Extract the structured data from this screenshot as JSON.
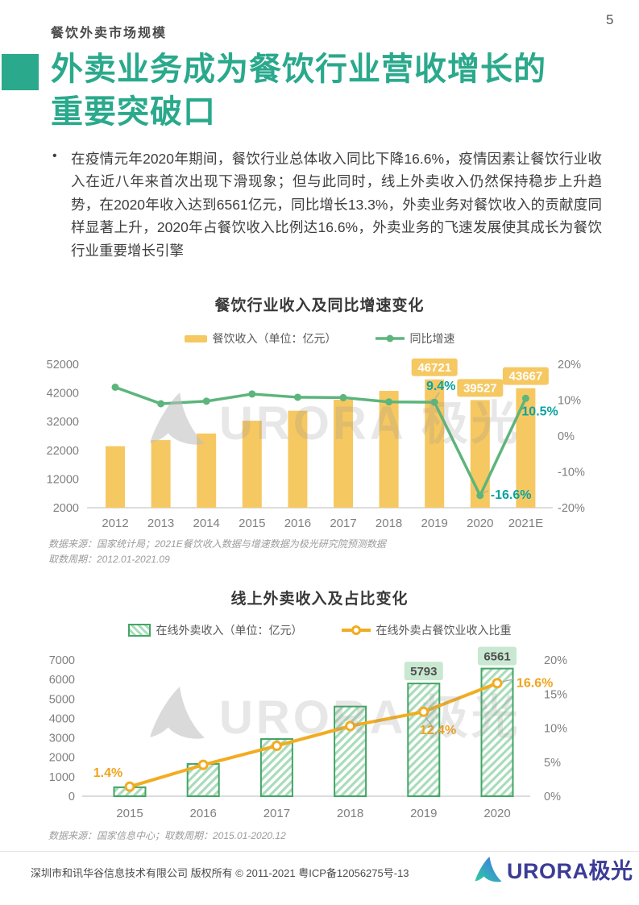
{
  "page": {
    "number": "5"
  },
  "header": {
    "section_title": "餐饮外卖市场规模"
  },
  "title": {
    "line1": "外卖业务成为餐饮行业营收增长的",
    "line2": "重要突破口"
  },
  "bullet": {
    "marker": "•",
    "text": "在疫情元年2020年期间，餐饮行业总体收入同比下降16.6%，疫情因素让餐饮行业收入在近八年来首次出现下滑现象；但与此同时，线上外卖收入仍然保持稳步上升趋势，在2020年收入达到6561亿元，同比增长13.3%，外卖业务对餐饮收入的贡献度同样显著上升，2020年占餐饮收入比例达16.6%，外卖业务的飞速发展使其成长为餐饮行业重要增长引擎"
  },
  "colors": {
    "accent_teal": "#2aa98c",
    "bar_yellow": "#F6C862",
    "line_green": "#5CB57C",
    "teal_label": "#0BA3A1",
    "hatch_border_green": "#43A566",
    "hatch_stripe_green": "#A9DCBA",
    "green_box_bg": "#C9E8D1",
    "line_orange": "#F2AC21",
    "orange_label": "#F0A41C",
    "logo_indigo": "#3c3c96"
  },
  "chart_data": [
    {
      "type": "bar+line",
      "title": "餐饮行业收入及同比增速变化",
      "legend": [
        {
          "label": "餐饮收入（单位：亿元）",
          "swatch": "bar"
        },
        {
          "label": "同比增速",
          "swatch": "line"
        }
      ],
      "categories": [
        "2012",
        "2013",
        "2014",
        "2015",
        "2016",
        "2017",
        "2018",
        "2019",
        "2020",
        "2021E"
      ],
      "series": [
        {
          "name": "餐饮收入",
          "type": "bar",
          "unit": "亿元",
          "values": [
            23448,
            25569,
            27860,
            32310,
            35799,
            39644,
            42716,
            46721,
            39527,
            43667
          ]
        },
        {
          "name": "同比增速",
          "type": "line",
          "unit": "%",
          "values": [
            13.6,
            9.0,
            9.7,
            11.7,
            10.8,
            10.7,
            9.5,
            9.4,
            -16.6,
            10.5
          ]
        }
      ],
      "left_axis": {
        "min": 2000,
        "max": 52000,
        "ticks": [
          52000,
          42000,
          32000,
          22000,
          12000,
          2000
        ]
      },
      "right_axis": {
        "min": -20,
        "max": 20,
        "ticks": [
          "20%",
          "10%",
          "0%",
          "-10%",
          "-20%"
        ]
      },
      "bar_labels": [
        {
          "category": "2019",
          "text": "46721"
        },
        {
          "category": "2020",
          "text": "39527"
        },
        {
          "category": "2021E",
          "text": "43667"
        }
      ],
      "line_labels": [
        {
          "category": "2019",
          "text": "9.4%",
          "pos": "above"
        },
        {
          "category": "2020",
          "text": "-16.6%",
          "pos": "right"
        },
        {
          "category": "2021E",
          "text": "10.5%",
          "pos": "below-right"
        }
      ],
      "source_lines": [
        "数据来源：国家统计局；2021E餐饮收入数据与增速数据为极光研究院预测数据",
        "取数周期：2012.01-2021.09"
      ]
    },
    {
      "type": "bar+line",
      "title": "线上外卖收入及占比变化",
      "legend": [
        {
          "label": "在线外卖收入（单位：亿元）",
          "swatch": "bar-hatch"
        },
        {
          "label": "在线外卖占餐饮业收入比重",
          "swatch": "line-hollow"
        }
      ],
      "categories": [
        "2015",
        "2016",
        "2017",
        "2018",
        "2019",
        "2020"
      ],
      "series": [
        {
          "name": "在线外卖收入",
          "type": "bar",
          "unit": "亿元",
          "values": [
            460,
            1660,
            2940,
            4610,
            5793,
            6561
          ]
        },
        {
          "name": "在线外卖占餐饮业收入比重",
          "type": "line",
          "unit": "%",
          "values": [
            1.4,
            4.6,
            7.4,
            10.3,
            12.4,
            16.6
          ]
        }
      ],
      "left_axis": {
        "min": 0,
        "max": 7000,
        "ticks": [
          7000,
          6000,
          5000,
          4000,
          3000,
          2000,
          1000,
          0
        ]
      },
      "right_axis": {
        "min": 0,
        "max": 20,
        "ticks": [
          "20%",
          "15%",
          "10%",
          "5%",
          "0%"
        ]
      },
      "bar_labels": [
        {
          "category": "2019",
          "text": "5793"
        },
        {
          "category": "2020",
          "text": "6561"
        }
      ],
      "line_labels": [
        {
          "category": "2015",
          "text": "1.4%",
          "pos": "above-left"
        },
        {
          "category": "2019",
          "text": "12.4%",
          "pos": "below"
        },
        {
          "category": "2020",
          "text": "16.6%",
          "pos": "right"
        }
      ],
      "source_lines": [
        "数据来源：国家信息中心；取数周期：2015.01-2020.12"
      ]
    }
  ],
  "watermark": {
    "text": "URORA 极光"
  },
  "footer": {
    "copyright": "深圳市和讯华谷信息技术有限公司 版权所有 © 2011-2021 粤ICP备12056275号-13",
    "logo_text": "URORA极光"
  }
}
